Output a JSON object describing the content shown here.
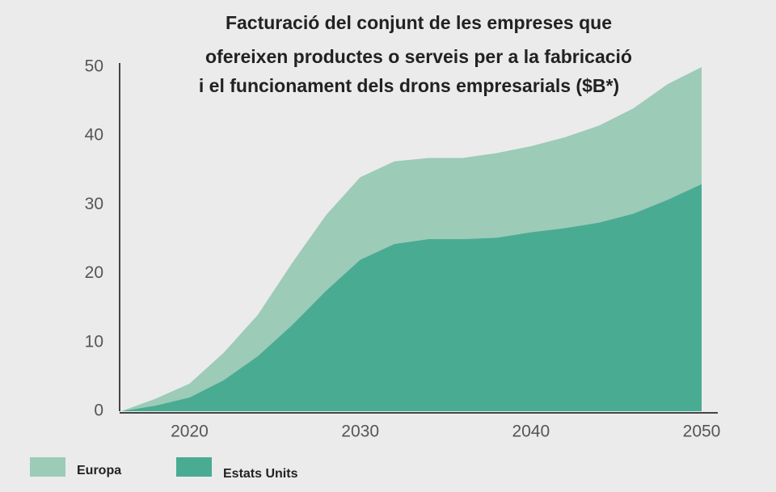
{
  "chart_data": {
    "type": "stacked_area",
    "title": [
      "Facturació del conjunt de les empreses que",
      "ofereixen productes o serveis per a la fabricació",
      "i el funcionament dels drons empresarials ($B*)"
    ],
    "x": [
      2016,
      2018,
      2020,
      2022,
      2024,
      2026,
      2028,
      2030,
      2032,
      2034,
      2036,
      2038,
      2040,
      2042,
      2044,
      2046,
      2048,
      2050
    ],
    "series": [
      {
        "name": "Estats Units",
        "color": "#4aab93",
        "values": [
          0,
          0.8,
          2,
          4.5,
          8,
          12.5,
          17.5,
          22,
          24.3,
          25,
          25,
          25.2,
          26,
          26.6,
          27.4,
          28.7,
          30.7,
          33
        ]
      },
      {
        "name": "Europa",
        "color": "#9ccbb8",
        "values": [
          0,
          1,
          2,
          4,
          6,
          9,
          11,
          12,
          12,
          11.8,
          11.8,
          12.3,
          12.5,
          13.2,
          14.1,
          15.3,
          16.8,
          17
        ]
      }
    ],
    "xlim": [
      2016,
      2050
    ],
    "xticks": [
      2020,
      2030,
      2040,
      2050
    ],
    "ylim": [
      0,
      50
    ],
    "yticks": [
      0,
      10,
      20,
      30,
      40,
      50
    ],
    "grid": false
  }
}
